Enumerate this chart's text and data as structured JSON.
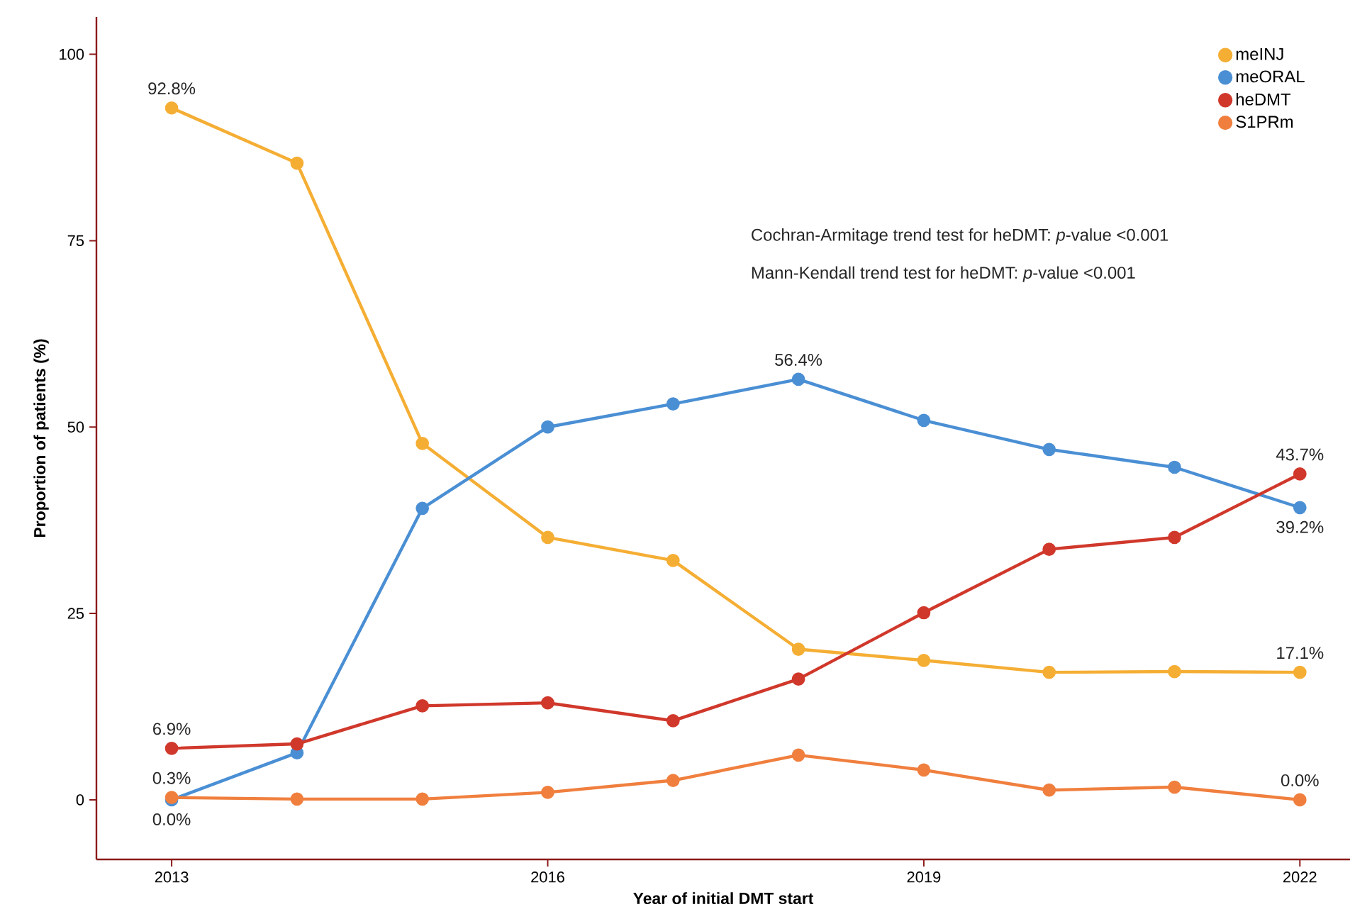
{
  "chart_data": {
    "type": "line",
    "xlabel": "Year of initial DMT start",
    "ylabel": "Proportion of patients (%)",
    "x": [
      2013,
      2014,
      2015,
      2016,
      2017,
      2018,
      2019,
      2020,
      2021,
      2022
    ],
    "series": [
      {
        "name": "meINJ",
        "color": "#f5ae34",
        "values": [
          92.8,
          85.4,
          47.8,
          35.2,
          32.1,
          20.2,
          18.7,
          17.1,
          17.2,
          17.1
        ]
      },
      {
        "name": "meORAL",
        "color": "#4a8fd4",
        "values": [
          0.0,
          6.3,
          39.1,
          50.0,
          53.1,
          56.4,
          50.9,
          47.0,
          44.6,
          39.2
        ]
      },
      {
        "name": "heDMT",
        "color": "#d0382b",
        "values": [
          6.9,
          7.5,
          12.6,
          13.0,
          10.6,
          16.2,
          25.1,
          33.6,
          35.2,
          43.7
        ]
      },
      {
        "name": "S1PRm",
        "color": "#f07f3e",
        "values": [
          0.3,
          0.1,
          0.1,
          1.0,
          2.6,
          6.0,
          4.0,
          1.3,
          1.7,
          0.0
        ]
      }
    ],
    "xlim": [
      2012.4,
      2022.4
    ],
    "ylim": [
      -8,
      105
    ],
    "xticks": [
      2013,
      2016,
      2019,
      2022
    ],
    "yticks": [
      0,
      25,
      50,
      75,
      100
    ],
    "grid": false,
    "legend": "top right",
    "marker": "circle",
    "line_style": "solid",
    "annotations": [
      {
        "text": "92.8%",
        "x": 2013,
        "y": 92.8
      },
      {
        "text": "6.9%",
        "x": 2013,
        "y": 6.9
      },
      {
        "text": "0.3%",
        "x": 2013,
        "y": 0.3
      },
      {
        "text": "0.0%",
        "x": 2013,
        "y": 0.0
      },
      {
        "text": "56.4%",
        "x": 2018,
        "y": 56.4
      },
      {
        "text": "43.7%",
        "x": 2022,
        "y": 43.7
      },
      {
        "text": "39.2%",
        "x": 2022,
        "y": 39.2
      },
      {
        "text": "17.1%",
        "x": 2022,
        "y": 17.1
      },
      {
        "text": "0.0%",
        "x": 2022,
        "y": 0.0
      },
      "Cochran-Armitage trend test for heDMT: *p*-value <0.001",
      "Mann-Kendall trend test for heDMT: *p*-value <0.001"
    ]
  }
}
